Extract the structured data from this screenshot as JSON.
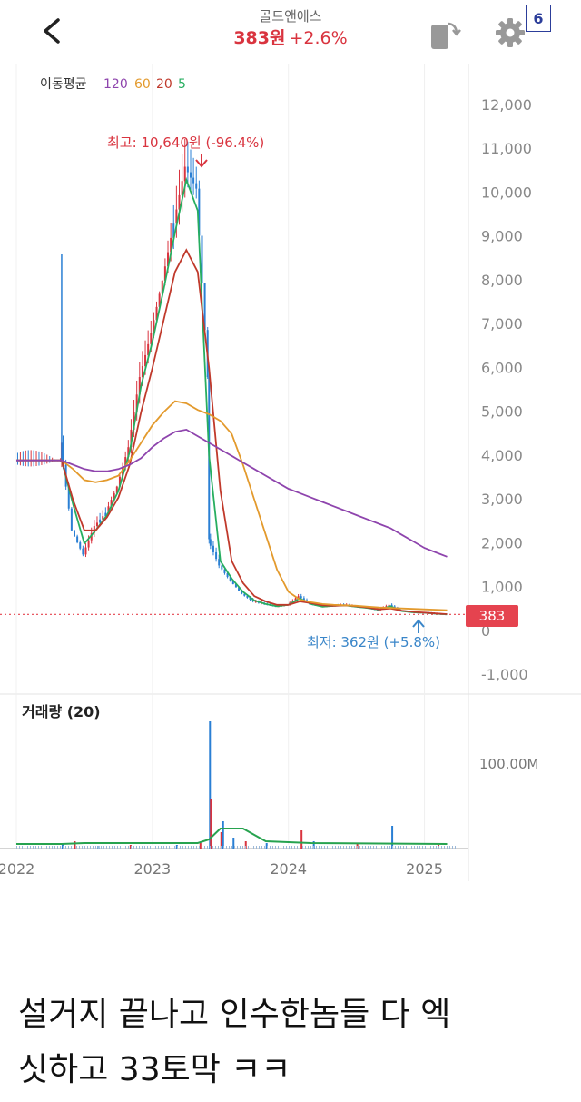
{
  "header": {
    "stock_name": "골드앤에스",
    "price": "383원",
    "change": "+2.6%",
    "badge": "6"
  },
  "legend": {
    "label": "이동평균",
    "periods": [
      {
        "label": "120",
        "color": "#8e44ad"
      },
      {
        "label": "60",
        "color": "#e39a2d"
      },
      {
        "label": "20",
        "color": "#c0392b"
      },
      {
        "label": "5",
        "color": "#27ae60"
      }
    ]
  },
  "annotations": {
    "high": "최고: 10,640원 (-96.4%)",
    "low": "최저: 362원 (+5.8%)",
    "current_tag": "383"
  },
  "volume_panel": {
    "title": "거래량 (20)",
    "axis_label": "100.00M"
  },
  "caption": {
    "line1": "설거지 끝나고 인수한놈들 다 엑",
    "line2": "싯하고 33토막 ㅋㅋ"
  },
  "colors": {
    "up": "#d9343f",
    "down": "#2a7fd4",
    "ma120": "#8e44ad",
    "ma60": "#e39a2d",
    "ma20": "#c0392b",
    "ma5": "#27ae60",
    "volume_ma": "#27a34f"
  },
  "chart_data": {
    "type": "line",
    "x_tick_labels": [
      "2022",
      "2023",
      "2024",
      "2025"
    ],
    "y_tick_labels": [
      "12,000",
      "11,000",
      "10,000",
      "9,000",
      "8,000",
      "7,000",
      "6,000",
      "5,000",
      "4,000",
      "3,000",
      "2,000",
      "1,000",
      "0",
      "-1,000"
    ],
    "ylim": [
      -1000,
      12000
    ],
    "time_range": [
      "2022-01",
      "2025-04"
    ],
    "series": [
      {
        "key": "price",
        "points": [
          [
            "2022-01",
            3900
          ],
          [
            "2022-05",
            3900
          ],
          [
            "2022-05",
            4300
          ],
          [
            "2022-06",
            2300
          ],
          [
            "2022-07",
            1750
          ],
          [
            "2022-08",
            2400
          ],
          [
            "2022-09",
            2700
          ],
          [
            "2022-10",
            3300
          ],
          [
            "2022-11",
            4200
          ],
          [
            "2022-12",
            5800
          ],
          [
            "2023-01",
            6800
          ],
          [
            "2023-02",
            8000
          ],
          [
            "2023-03",
            9300
          ],
          [
            "2023-04",
            10600
          ],
          [
            "2023-05",
            10100
          ],
          [
            "2023-06",
            5800
          ],
          [
            "2023-06",
            2100
          ],
          [
            "2023-07",
            1500
          ],
          [
            "2023-08",
            1150
          ],
          [
            "2023-09",
            850
          ],
          [
            "2023-10",
            680
          ],
          [
            "2023-11",
            620
          ],
          [
            "2023-12",
            560
          ],
          [
            "2024-01",
            600
          ],
          [
            "2024-02",
            800
          ],
          [
            "2024-03",
            620
          ],
          [
            "2024-04",
            560
          ],
          [
            "2024-05",
            580
          ],
          [
            "2024-06",
            600
          ],
          [
            "2024-07",
            560
          ],
          [
            "2024-08",
            530
          ],
          [
            "2024-09",
            480
          ],
          [
            "2024-10",
            600
          ],
          [
            "2024-11",
            460
          ],
          [
            "2024-12",
            430
          ],
          [
            "2025-01",
            420
          ],
          [
            "2025-02",
            400
          ],
          [
            "2025-03",
            383
          ]
        ]
      },
      {
        "key": "ma5",
        "points": [
          [
            "2022-01",
            3900
          ],
          [
            "2022-05",
            3900
          ],
          [
            "2022-06",
            2900
          ],
          [
            "2022-07",
            2000
          ],
          [
            "2022-08",
            2300
          ],
          [
            "2022-09",
            2650
          ],
          [
            "2022-10",
            3200
          ],
          [
            "2022-11",
            4100
          ],
          [
            "2022-12",
            5600
          ],
          [
            "2023-01",
            6600
          ],
          [
            "2023-02",
            7800
          ],
          [
            "2023-03",
            9100
          ],
          [
            "2023-04",
            10300
          ],
          [
            "2023-05",
            9600
          ],
          [
            "2023-06",
            4000
          ],
          [
            "2023-07",
            1600
          ],
          [
            "2023-08",
            1200
          ],
          [
            "2023-09",
            900
          ],
          [
            "2023-10",
            700
          ],
          [
            "2023-11",
            620
          ],
          [
            "2023-12",
            570
          ],
          [
            "2024-01",
            600
          ],
          [
            "2024-02",
            750
          ],
          [
            "2024-03",
            620
          ],
          [
            "2024-04",
            560
          ],
          [
            "2024-05",
            580
          ],
          [
            "2024-06",
            590
          ],
          [
            "2024-07",
            560
          ],
          [
            "2024-08",
            530
          ],
          [
            "2024-09",
            490
          ],
          [
            "2024-10",
            570
          ],
          [
            "2024-11",
            460
          ],
          [
            "2024-12",
            430
          ],
          [
            "2025-01",
            420
          ],
          [
            "2025-02",
            400
          ],
          [
            "2025-03",
            385
          ]
        ]
      },
      {
        "key": "ma20",
        "points": [
          [
            "2022-01",
            3900
          ],
          [
            "2022-05",
            3900
          ],
          [
            "2022-06",
            3000
          ],
          [
            "2022-07",
            2300
          ],
          [
            "2022-08",
            2300
          ],
          [
            "2022-09",
            2600
          ],
          [
            "2022-10",
            3050
          ],
          [
            "2022-11",
            3800
          ],
          [
            "2022-12",
            5000
          ],
          [
            "2023-01",
            6000
          ],
          [
            "2023-02",
            7100
          ],
          [
            "2023-03",
            8200
          ],
          [
            "2023-04",
            8700
          ],
          [
            "2023-05",
            8200
          ],
          [
            "2023-06",
            6000
          ],
          [
            "2023-07",
            3200
          ],
          [
            "2023-08",
            1600
          ],
          [
            "2023-09",
            1100
          ],
          [
            "2023-10",
            800
          ],
          [
            "2023-11",
            680
          ],
          [
            "2023-12",
            600
          ],
          [
            "2024-01",
            600
          ],
          [
            "2024-02",
            680
          ],
          [
            "2024-03",
            640
          ],
          [
            "2024-04",
            590
          ],
          [
            "2024-05",
            580
          ],
          [
            "2024-06",
            590
          ],
          [
            "2024-07",
            570
          ],
          [
            "2024-08",
            540
          ],
          [
            "2024-09",
            500
          ],
          [
            "2024-10",
            520
          ],
          [
            "2024-11",
            470
          ],
          [
            "2024-12",
            440
          ],
          [
            "2025-01",
            425
          ],
          [
            "2025-02",
            405
          ],
          [
            "2025-03",
            390
          ]
        ]
      },
      {
        "key": "ma60",
        "points": [
          [
            "2022-01",
            3900
          ],
          [
            "2022-05",
            3900
          ],
          [
            "2022-06",
            3700
          ],
          [
            "2022-07",
            3450
          ],
          [
            "2022-08",
            3400
          ],
          [
            "2022-09",
            3450
          ],
          [
            "2022-10",
            3550
          ],
          [
            "2022-11",
            3900
          ],
          [
            "2022-12",
            4300
          ],
          [
            "2023-01",
            4700
          ],
          [
            "2023-02",
            5000
          ],
          [
            "2023-03",
            5250
          ],
          [
            "2023-04",
            5200
          ],
          [
            "2023-05",
            5050
          ],
          [
            "2023-06",
            4950
          ],
          [
            "2023-07",
            4800
          ],
          [
            "2023-08",
            4500
          ],
          [
            "2023-09",
            3800
          ],
          [
            "2023-10",
            3000
          ],
          [
            "2023-11",
            2200
          ],
          [
            "2023-12",
            1400
          ],
          [
            "2024-01",
            900
          ],
          [
            "2024-02",
            720
          ],
          [
            "2024-03",
            660
          ],
          [
            "2024-04",
            620
          ],
          [
            "2024-05",
            600
          ],
          [
            "2024-06",
            590
          ],
          [
            "2024-07",
            580
          ],
          [
            "2024-08",
            560
          ],
          [
            "2024-09",
            540
          ],
          [
            "2024-10",
            530
          ],
          [
            "2024-11",
            520
          ],
          [
            "2024-12",
            510
          ],
          [
            "2025-01",
            500
          ],
          [
            "2025-02",
            490
          ],
          [
            "2025-03",
            480
          ]
        ]
      },
      {
        "key": "ma120",
        "points": [
          [
            "2022-01",
            3900
          ],
          [
            "2022-05",
            3900
          ],
          [
            "2022-06",
            3800
          ],
          [
            "2022-07",
            3700
          ],
          [
            "2022-08",
            3650
          ],
          [
            "2022-09",
            3650
          ],
          [
            "2022-10",
            3700
          ],
          [
            "2022-11",
            3800
          ],
          [
            "2022-12",
            3950
          ],
          [
            "2023-01",
            4200
          ],
          [
            "2023-02",
            4400
          ],
          [
            "2023-03",
            4550
          ],
          [
            "2023-04",
            4600
          ],
          [
            "2023-05",
            4450
          ],
          [
            "2023-06",
            4300
          ],
          [
            "2023-07",
            4150
          ],
          [
            "2023-08",
            4000
          ],
          [
            "2023-09",
            3850
          ],
          [
            "2023-10",
            3700
          ],
          [
            "2023-11",
            3550
          ],
          [
            "2023-12",
            3400
          ],
          [
            "2024-01",
            3250
          ],
          [
            "2024-02",
            3150
          ],
          [
            "2024-03",
            3050
          ],
          [
            "2024-04",
            2950
          ],
          [
            "2024-05",
            2850
          ],
          [
            "2024-06",
            2750
          ],
          [
            "2024-07",
            2650
          ],
          [
            "2024-08",
            2550
          ],
          [
            "2024-09",
            2450
          ],
          [
            "2024-10",
            2350
          ],
          [
            "2024-11",
            2200
          ],
          [
            "2024-12",
            2050
          ],
          [
            "2025-01",
            1900
          ],
          [
            "2025-02",
            1800
          ],
          [
            "2025-03",
            1700
          ]
        ]
      }
    ],
    "volume": [
      [
        "2022-05",
        5
      ],
      [
        "2022-06",
        8
      ],
      [
        "2022-08",
        3
      ],
      [
        "2022-11",
        4
      ],
      [
        "2023-03",
        4
      ],
      [
        "2023-05",
        6
      ],
      [
        "2023-06",
        140
      ],
      [
        "2023-06",
        55
      ],
      [
        "2023-07",
        30
      ],
      [
        "2023-07",
        18
      ],
      [
        "2023-08",
        12
      ],
      [
        "2023-09",
        8
      ],
      [
        "2023-11",
        6
      ],
      [
        "2024-02",
        20
      ],
      [
        "2024-03",
        8
      ],
      [
        "2024-07",
        6
      ],
      [
        "2024-10",
        25
      ],
      [
        "2025-02",
        4
      ]
    ],
    "volume_ma": [
      [
        "2022-01",
        5
      ],
      [
        "2022-05",
        5
      ],
      [
        "2022-07",
        6
      ],
      [
        "2023-05",
        6
      ],
      [
        "2023-06",
        10
      ],
      [
        "2023-07",
        22
      ],
      [
        "2023-09",
        22
      ],
      [
        "2023-11",
        8
      ],
      [
        "2024-03",
        6
      ],
      [
        "2025-03",
        5
      ]
    ]
  }
}
